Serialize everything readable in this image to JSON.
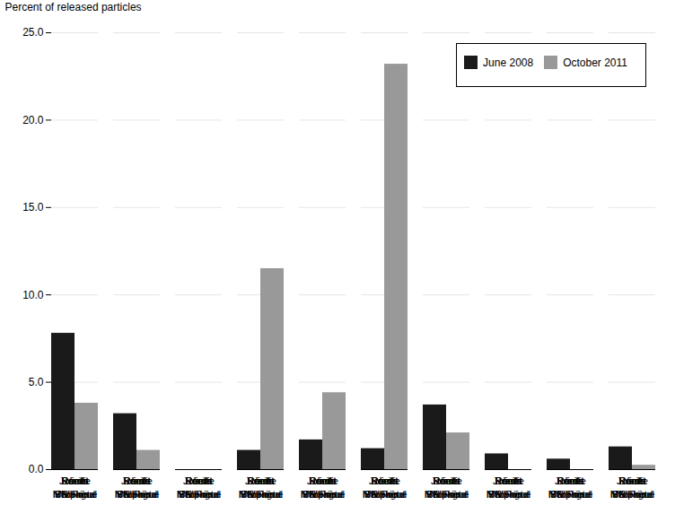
{
  "chart_data": {
    "type": "bar",
    "ylabel": "Percent of released particles",
    "categories": [
      "Somlit",
      "NW Frioul",
      "Rouet",
      "Niolon",
      "Joliette",
      "SE Frioul",
      "Récifs",
      "Prophète",
      "Prado",
      "Madrague"
    ],
    "series": [
      {
        "name": "June 2008",
        "color": "#1a1a1a",
        "values": [
          7.8,
          3.2,
          0.0,
          1.1,
          1.7,
          1.2,
          3.7,
          0.9,
          0.6,
          1.3
        ]
      },
      {
        "name": "October 2011",
        "color": "#999999",
        "values": [
          3.8,
          1.1,
          0.0,
          11.5,
          4.4,
          23.2,
          2.1,
          0.0,
          0.0,
          0.25
        ]
      }
    ],
    "ylim": [
      0,
      25.0
    ],
    "yticks": [
      {
        "value": 0.0,
        "label": "0.0"
      },
      {
        "value": 5.0,
        "label": "5.0"
      },
      {
        "value": 10.0,
        "label": "10.0"
      },
      {
        "value": 15.0,
        "label": "15.0"
      },
      {
        "value": 20.0,
        "label": "20.0"
      },
      {
        "value": 25.0,
        "label": "25.0"
      }
    ],
    "grid": true,
    "legend": "upper right"
  }
}
